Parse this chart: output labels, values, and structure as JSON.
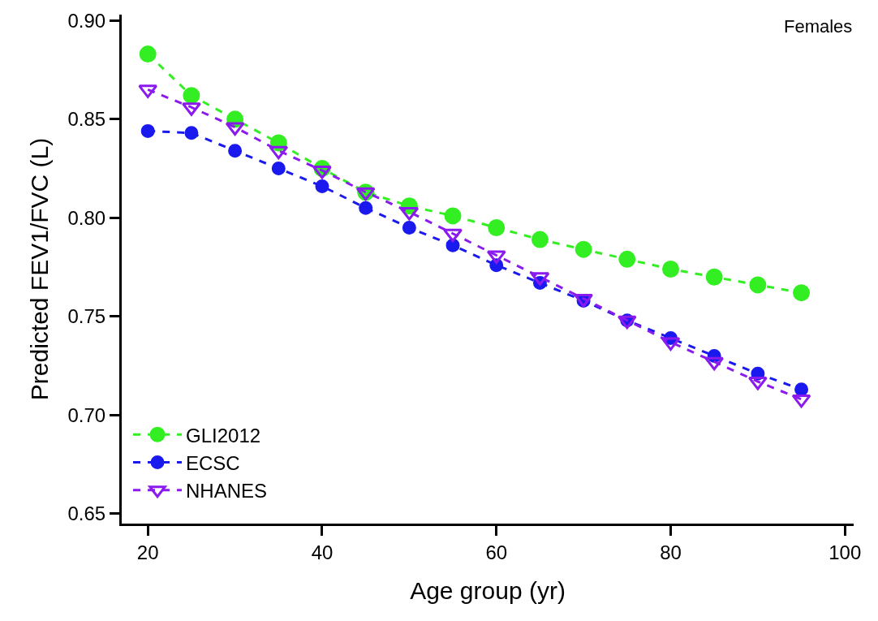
{
  "chart_data": {
    "type": "line",
    "xlabel": "Age group (yr)",
    "ylabel": "Predicted FEV1/FVC (L)",
    "annotations": [
      "Females"
    ],
    "x": [
      20,
      25,
      30,
      35,
      40,
      45,
      50,
      55,
      60,
      65,
      70,
      75,
      80,
      85,
      90,
      95
    ],
    "xlim": [
      17,
      101
    ],
    "xticks": [
      20,
      40,
      60,
      80,
      100
    ],
    "ylim": [
      0.645,
      0.903
    ],
    "yticks": [
      {
        "value": 0.65,
        "label": "0.65"
      },
      {
        "value": 0.7,
        "label": "0.70"
      },
      {
        "value": 0.75,
        "label": "0.75"
      },
      {
        "value": 0.8,
        "label": "0.80"
      },
      {
        "value": 0.85,
        "label": "0.85"
      },
      {
        "value": 0.9,
        "label": "0.90"
      }
    ],
    "legend": "bottom left",
    "line_style": "dashed",
    "series": [
      {
        "name": "GLI2012",
        "color": "#33ee22",
        "marker": "circle",
        "values": [
          0.883,
          0.862,
          0.85,
          0.838,
          0.825,
          0.813,
          0.806,
          0.801,
          0.795,
          0.789,
          0.784,
          0.779,
          0.774,
          0.77,
          0.766,
          0.762
        ]
      },
      {
        "name": "ECSC",
        "color": "#1a1aee",
        "marker": "circle",
        "values": [
          0.844,
          0.843,
          0.834,
          0.825,
          0.816,
          0.805,
          0.795,
          0.786,
          0.776,
          0.767,
          0.758,
          0.748,
          0.739,
          0.73,
          0.721,
          0.713
        ]
      },
      {
        "name": "NHANES",
        "color": "#8a1aee",
        "marker": "triangle",
        "values": [
          0.865,
          0.856,
          0.846,
          0.834,
          0.824,
          0.813,
          0.803,
          0.792,
          0.781,
          0.77,
          0.759,
          0.748,
          0.737,
          0.727,
          0.717,
          0.708
        ]
      }
    ]
  }
}
